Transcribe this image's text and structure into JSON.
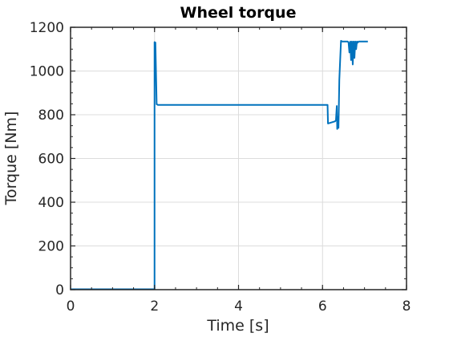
{
  "chart_data": {
    "type": "line",
    "title": "Wheel torque",
    "xlabel": "Time [s]",
    "ylabel": "Torque [Nm]",
    "xlim": [
      0,
      8
    ],
    "ylim": [
      0,
      1200
    ],
    "xticks": [
      0,
      2,
      4,
      6,
      8
    ],
    "yticks": [
      0,
      200,
      400,
      600,
      800,
      1000,
      1200
    ],
    "grid": true,
    "series": [
      {
        "color": "#0072BD",
        "x": [
          0,
          1.99,
          2.0,
          2.0,
          2.02,
          2.05,
          2.08,
          6.1,
          6.12,
          6.13,
          6.3,
          6.32,
          6.34,
          6.35,
          6.36,
          6.38,
          6.4,
          6.44,
          6.47,
          6.6,
          6.62,
          6.64,
          6.66,
          6.68,
          6.7,
          6.72,
          6.74,
          6.76,
          6.78,
          6.8,
          6.82,
          6.84,
          6.86,
          7.08
        ],
        "y": [
          2,
          2,
          2,
          1132,
          1130,
          848,
          845,
          845,
          845,
          760,
          770,
          775,
          840,
          735,
          790,
          740,
          960,
          1138,
          1135,
          1135,
          1130,
          1085,
          1135,
          1050,
          1135,
          1030,
          1135,
          1060,
          1135,
          1100,
          1135,
          1130,
          1135,
          1135
        ]
      }
    ]
  }
}
